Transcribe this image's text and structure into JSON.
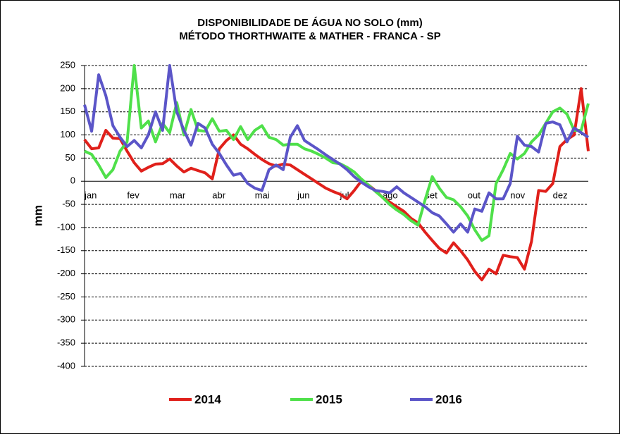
{
  "chart_data": {
    "type": "line",
    "title": "DISPONIBILIDADE DE ÁGUA NO SOLO (mm)",
    "subtitle": "MÉTODO THORTHWAITE & MATHER - FRANCA - SP",
    "y_label": "mm",
    "categories": [
      "jan",
      null,
      null,
      null,
      null,
      null,
      "fev",
      null,
      null,
      null,
      null,
      null,
      "mar",
      null,
      null,
      null,
      null,
      null,
      "abr",
      null,
      null,
      null,
      null,
      null,
      "mai",
      null,
      null,
      null,
      null,
      null,
      "jun",
      null,
      null,
      null,
      null,
      null,
      "jul",
      null,
      null,
      null,
      null,
      null,
      "ago",
      null,
      null,
      null,
      null,
      null,
      "set",
      null,
      null,
      null,
      null,
      null,
      "out",
      null,
      null,
      null,
      null,
      null,
      "nov",
      null,
      null,
      null,
      null,
      null,
      "dez",
      null,
      null,
      null,
      null,
      null
    ],
    "series": [
      {
        "name": "2014",
        "color": "#e0201b",
        "values": [
          90,
          70,
          72,
          110,
          93,
          92,
          65,
          40,
          22,
          30,
          37,
          38,
          48,
          33,
          20,
          28,
          23,
          18,
          5,
          70,
          88,
          100,
          80,
          70,
          58,
          47,
          38,
          33,
          37,
          35,
          25,
          15,
          5,
          -5,
          -15,
          -22,
          -28,
          -38,
          -20,
          0,
          -8,
          -20,
          -35,
          -45,
          -55,
          -65,
          -80,
          -90,
          -110,
          -128,
          -145,
          -155,
          -133,
          -150,
          -170,
          -195,
          -213,
          -190,
          -200,
          -160,
          -163,
          -165,
          -190,
          -130,
          -20,
          -22,
          -5,
          75,
          90,
          100,
          200,
          65
        ]
      },
      {
        "name": "2015",
        "color": "#4fe04a",
        "values": [
          65,
          58,
          35,
          8,
          25,
          65,
          85,
          250,
          115,
          130,
          85,
          125,
          105,
          170,
          100,
          155,
          110,
          108,
          135,
          108,
          110,
          90,
          118,
          90,
          110,
          120,
          95,
          90,
          78,
          80,
          80,
          70,
          65,
          58,
          50,
          40,
          38,
          30,
          20,
          5,
          -8,
          -22,
          -35,
          -50,
          -62,
          -72,
          -85,
          -95,
          -40,
          10,
          -15,
          -35,
          -40,
          -55,
          -75,
          -105,
          -128,
          -118,
          -5,
          25,
          60,
          48,
          60,
          85,
          100,
          125,
          150,
          158,
          145,
          110,
          110,
          168
        ]
      },
      {
        "name": "2016",
        "color": "#5b55c8",
        "values": [
          165,
          108,
          230,
          185,
          120,
          95,
          75,
          88,
          72,
          100,
          150,
          110,
          250,
          150,
          110,
          78,
          125,
          115,
          80,
          60,
          35,
          13,
          17,
          -5,
          -15,
          -20,
          25,
          35,
          25,
          95,
          120,
          88,
          78,
          68,
          57,
          47,
          37,
          25,
          10,
          -2,
          -12,
          -20,
          -22,
          -25,
          -12,
          -25,
          -35,
          -45,
          -55,
          -68,
          -75,
          -92,
          -110,
          -92,
          -110,
          -60,
          -65,
          -25,
          -38,
          -38,
          -5,
          97,
          78,
          75,
          63,
          125,
          128,
          122,
          85,
          115,
          105,
          95
        ]
      }
    ],
    "ylim": [
      -400,
      250
    ],
    "yticks": [
      -400,
      -350,
      -300,
      -250,
      -200,
      -150,
      -100,
      -50,
      0,
      50,
      100,
      150,
      200,
      250
    ],
    "grid": true
  }
}
